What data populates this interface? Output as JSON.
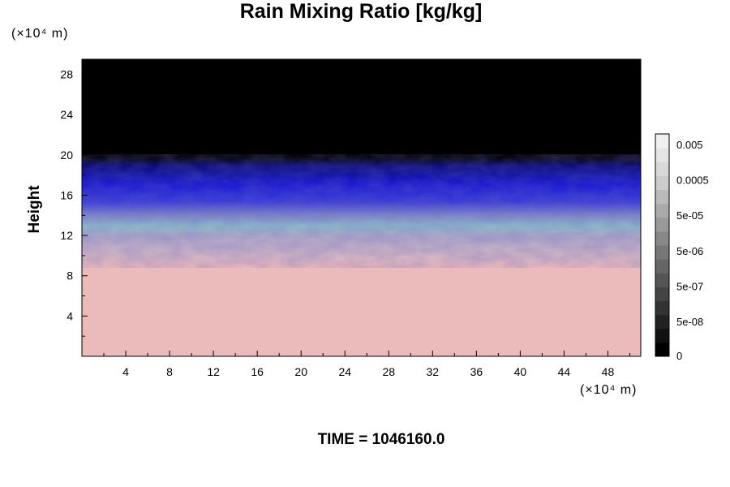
{
  "chart_data": {
    "type": "heatmap",
    "title": "Rain Mixing Ratio [kg/kg]",
    "ylabel": "Height",
    "xlabel": "",
    "y_unit": "(×10⁴ m)",
    "x_unit": "(×10⁴ m)",
    "x_ticks": [
      4,
      8,
      12,
      16,
      20,
      24,
      28,
      32,
      36,
      40,
      44,
      48
    ],
    "y_ticks": [
      4,
      8,
      12,
      16,
      20,
      24,
      28
    ],
    "xlim": [
      0,
      51
    ],
    "ylim": [
      0,
      29.5
    ],
    "colorbar": {
      "labels": [
        "0.005",
        "0.0005",
        "5e-05",
        "5e-06",
        "5e-07",
        "5e-08",
        "0"
      ],
      "levels": 16,
      "colors": [
        "#000000",
        "#111111",
        "#222222",
        "#333333",
        "#444444",
        "#555555",
        "#666666",
        "#777777",
        "#888888",
        "#999999",
        "#aaaaaa",
        "#bbbbbb",
        "#cccccc",
        "#d8d8d8",
        "#e4e4e4",
        "#f0f0f0"
      ]
    },
    "regions": [
      {
        "name": "black",
        "y_from": 19.5,
        "y_to": 29.5,
        "color": "#000000"
      },
      {
        "name": "blue",
        "y_from": 15,
        "y_to": 19.5,
        "color": "#1010c8"
      },
      {
        "name": "cyan-violet",
        "y_from": 12,
        "y_to": 15,
        "color": "#8aa0c8"
      },
      {
        "name": "pink",
        "y_from": 0,
        "y_to": 12,
        "color": "#ebbaba"
      }
    ],
    "grid": false,
    "legend": "right"
  },
  "footer": {
    "time_label": "TIME = 1046160.0"
  }
}
